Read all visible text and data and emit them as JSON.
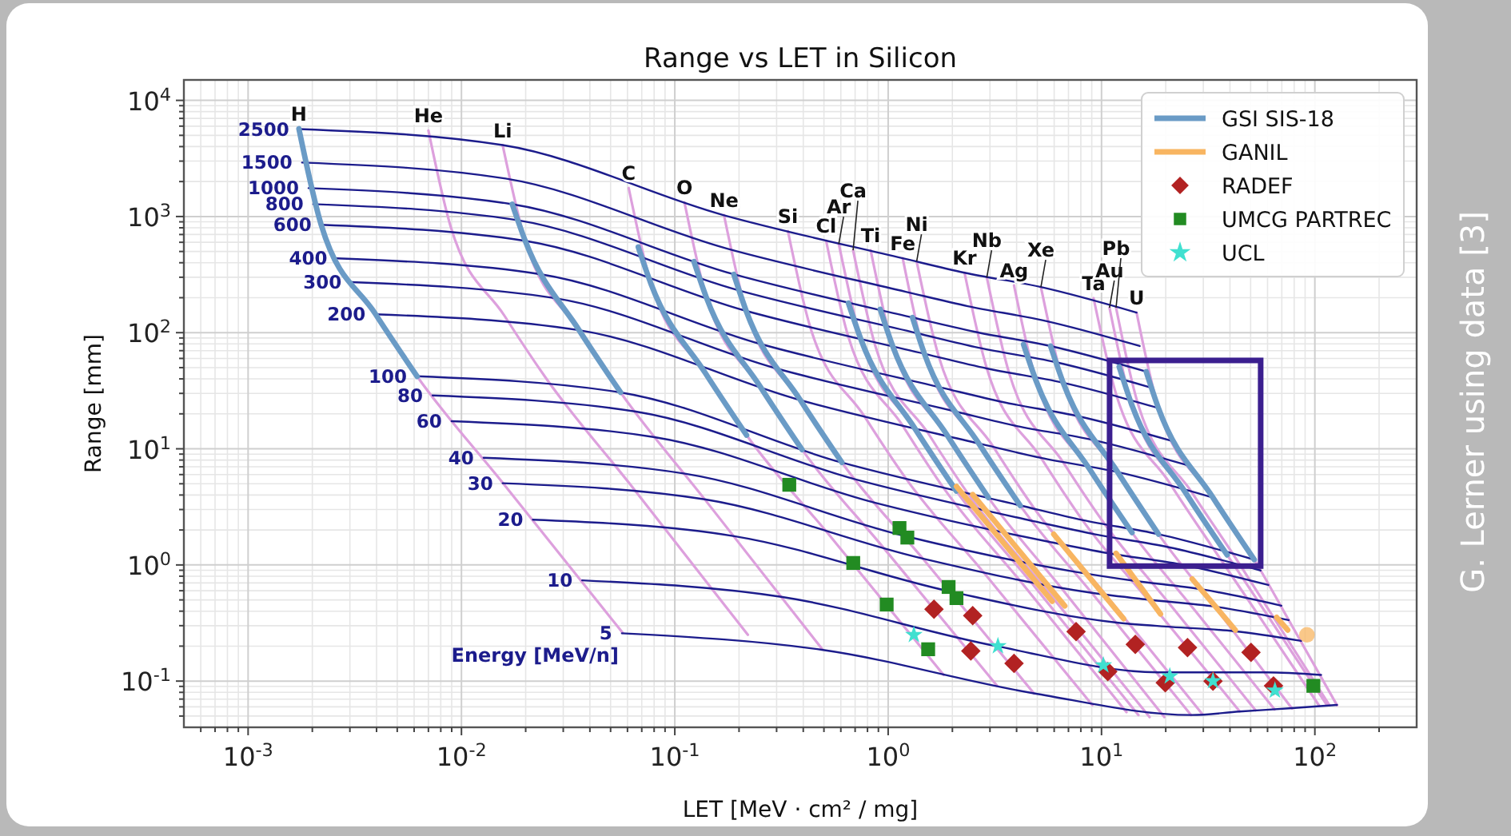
{
  "chart_data": {
    "type": "line",
    "title": "Range vs LET in Silicon",
    "xlabel": "LET [MeV · cm² / mg]",
    "ylabel": "Range [mm]",
    "log": "xy",
    "grid": true,
    "legend": "top right",
    "xlim": [
      0.0005,
      300
    ],
    "ylim": [
      0.04,
      15000
    ],
    "xticks": [
      {
        "value": 0.001,
        "label": "10$^{-3}$"
      },
      {
        "value": 0.01,
        "label": "10$^{-2}$"
      },
      {
        "value": 0.1,
        "label": "10$^{-1}$"
      },
      {
        "value": 1,
        "label": "10$^{0}$"
      },
      {
        "value": 10,
        "label": "10$^{1}$"
      },
      {
        "value": 100,
        "label": "10$^{2}$"
      }
    ],
    "yticks": [
      {
        "value": 0.1,
        "label": "10$^{-1}$"
      },
      {
        "value": 1,
        "label": "10$^{0}$"
      },
      {
        "value": 10,
        "label": "10$^{1}$"
      },
      {
        "value": 100,
        "label": "10$^{2}$"
      },
      {
        "value": 1000,
        "label": "10$^{3}$"
      },
      {
        "value": 10000,
        "label": "10$^{4}$"
      }
    ],
    "annotations": [
      "Energy [MeV/n]",
      "G. Lerner using data [3]"
    ],
    "series": [
      {
        "name": "H",
        "type": "line",
        "color": "#dda0dd",
        "x": [
          0.00173,
          0.0022,
          0.00395,
          0.0062,
          0.0156,
          0.057
        ],
        "values": [
          5700,
          850,
          145,
          42,
          5.1,
          0.26
        ]
      },
      {
        "name": "He",
        "type": "line",
        "color": "#dda0dd",
        "x": [
          0.007,
          0.0089,
          0.0159,
          0.0248,
          0.062,
          0.22
        ],
        "values": [
          5500,
          820,
          140,
          41,
          4.9,
          0.25
        ]
      },
      {
        "name": "Li",
        "type": "line",
        "color": "#dda0dd",
        "x": [
          0.0156,
          0.0199,
          0.0356,
          0.0557,
          0.138,
          0.491
        ],
        "values": [
          4120,
          618,
          105,
          30.6,
          3.68,
          0.188
        ]
      },
      {
        "name": "C",
        "type": "line",
        "color": "#dda0dd",
        "x": [
          0.0608,
          0.0773,
          0.139,
          0.217,
          0.528,
          1.82
        ],
        "values": [
          1760,
          264,
          44.9,
          13.1,
          1.82,
          0.113
        ]
      },
      {
        "name": "O",
        "type": "line",
        "color": "#dda0dd",
        "x": [
          0.111,
          0.141,
          0.253,
          0.395,
          0.953,
          3.24
        ],
        "values": [
          1320,
          198,
          33.7,
          9.82,
          1.4,
          0.091
        ]
      },
      {
        "name": "Ne",
        "type": "line",
        "color": "#dda0dd",
        "x": [
          0.17,
          0.216,
          0.388,
          0.607,
          1.45,
          4.83
        ],
        "values": [
          1030,
          154,
          26.2,
          7.62,
          1.14,
          0.078
        ]
      },
      {
        "name": "Si",
        "type": "line",
        "color": "#dda0dd",
        "x": [
          0.339,
          0.431,
          0.773,
          1.21,
          2.81,
          9.06
        ],
        "values": [
          748,
          112,
          19.1,
          5.56,
          0.857,
          0.062
        ]
      },
      {
        "name": "Cl",
        "type": "line",
        "color": "#dda0dd",
        "x": [
          0.512,
          0.65,
          1.17,
          1.82,
          4.17,
          13.1
        ],
        "values": [
          618,
          92.7,
          15.8,
          4.59,
          0.723,
          0.054
        ]
      },
      {
        "name": "Ar",
        "type": "line",
        "color": "#dda0dd",
        "x": [
          0.587,
          0.746,
          1.34,
          2.09,
          4.75,
          14.9
        ],
        "values": [
          581,
          87.1,
          14.8,
          4.32,
          0.684,
          0.051
        ]
      },
      {
        "name": "Ca",
        "type": "line",
        "color": "#dda0dd",
        "x": [
          0.685,
          0.871,
          1.56,
          2.44,
          5.47,
          16.8
        ],
        "values": [
          512,
          76.7,
          13.1,
          3.8,
          0.622,
          0.049
        ]
      },
      {
        "name": "Ti",
        "type": "line",
        "color": "#dda0dd",
        "x": [
          0.828,
          1.05,
          1.89,
          2.95,
          6.53,
          19.7
        ],
        "values": [
          512,
          76.7,
          13.1,
          3.8,
          0.622,
          0.049
        ]
      },
      {
        "name": "Fe",
        "type": "line",
        "color": "#dda0dd",
        "x": [
          1.17,
          1.48,
          2.66,
          4.16,
          9.0,
          26.3
        ],
        "values": [
          437,
          65.5,
          11.1,
          3.24,
          0.575,
          0.051
        ]
      },
      {
        "name": "Ni",
        "type": "line",
        "color": "#dda0dd",
        "x": [
          1.36,
          1.73,
          3.1,
          4.85,
          10.4,
          29.7
        ],
        "values": [
          410,
          61.5,
          10.5,
          3.05,
          0.56,
          0.052
        ]
      },
      {
        "name": "Kr",
        "type": "line",
        "color": "#dda0dd",
        "x": [
          2.28,
          2.9,
          5.2,
          8.13,
          16.5,
          44.4
        ],
        "values": [
          328,
          49.2,
          8.38,
          2.44,
          0.502,
          0.055
        ]
      },
      {
        "name": "Nb",
        "type": "line",
        "color": "#dda0dd",
        "x": [
          2.9,
          3.69,
          6.62,
          10.4,
          20.5,
          52.7
        ],
        "values": [
          299,
          44.8,
          7.62,
          2.22,
          0.48,
          0.056
        ]
      },
      {
        "name": "Ag",
        "type": "line",
        "color": "#dda0dd",
        "x": [
          3.89,
          4.94,
          8.87,
          13.9,
          26.4,
          64.7
        ],
        "values": [
          255,
          38.3,
          6.52,
          1.9,
          0.442,
          0.057
        ]
      },
      {
        "name": "Xe",
        "type": "line",
        "color": "#dda0dd",
        "x": [
          5.2,
          6.61,
          11.9,
          18.5,
          33.9,
          78.2
        ],
        "values": [
          247,
          37.1,
          6.31,
          1.84,
          0.438,
          0.058
        ]
      },
      {
        "name": "Ta",
        "type": "line",
        "color": "#dda0dd",
        "x": [
          9.18,
          11.7,
          20.9,
          32.7,
          53.3,
          105
        ],
        "values": [
          198,
          29.7,
          5.06,
          1.47,
          0.391,
          0.061
        ]
      },
      {
        "name": "Au",
        "type": "line",
        "color": "#dda0dd",
        "x": [
          10.9,
          13.8,
          24.8,
          38.8,
          61.0,
          114
        ],
        "values": [
          164,
          24.5,
          4.18,
          1.22,
          0.352,
          0.062
        ]
      },
      {
        "name": "Pb",
        "type": "line",
        "color": "#dda0dd",
        "x": [
          11.7,
          14.8,
          26.6,
          41.6,
          64.1,
          117
        ],
        "values": [
          164,
          24.5,
          4.18,
          1.22,
          0.352,
          0.062
        ]
      },
      {
        "name": "U",
        "type": "line",
        "color": "#dda0dd",
        "x": [
          14.6,
          18.5,
          33.3,
          52.0,
          75.5,
          127
        ],
        "values": [
          149,
          22.3,
          3.8,
          1.11,
          0.334,
          0.062
        ]
      },
      {
        "name": "2500",
        "type": "line",
        "color": "#1c1c8c",
        "x": [
          0.00173,
          0.0156,
          0.17,
          1.17,
          2.28,
          5.2,
          14.6
        ],
        "values": [
          5660,
          4120,
          1026,
          437,
          328,
          247,
          149
        ]
      },
      {
        "name": "1500",
        "type": "line",
        "color": "#1c1c8c",
        "x": [
          0.00179,
          0.0161,
          0.176,
          1.21,
          2.36,
          5.38,
          15.1
        ],
        "values": [
          2915,
          2122,
          528,
          225,
          169,
          127,
          76.7
        ]
      },
      {
        "name": "1000",
        "type": "line",
        "color": "#1c1c8c",
        "x": [
          0.00192,
          0.0173,
          0.189,
          1.3,
          2.53,
          5.77,
          16.2
        ],
        "values": [
          1755,
          1277,
          318,
          135,
          102,
          76.6,
          46.2
        ]
      },
      {
        "name": "800",
        "type": "line",
        "color": "#1c1c8c",
        "x": [
          0.00202,
          0.0182,
          0.198,
          1.37,
          2.66,
          6.07,
          17.0
        ],
        "values": [
          1279,
          931,
          232,
          98.8,
          74.1,
          55.8,
          33.7
        ]
      },
      {
        "name": "600",
        "type": "line",
        "color": "#1c1c8c",
        "x": [
          0.0022,
          0.0198,
          0.216,
          1.49,
          2.9,
          6.6,
          18.5
        ],
        "values": [
          849,
          618,
          154,
          65.6,
          49.2,
          37.1,
          22.4
        ]
      },
      {
        "name": "400",
        "type": "line",
        "color": "#1c1c8c",
        "x": [
          0.00261,
          0.0236,
          0.257,
          1.77,
          3.44,
          7.85,
          22.0
        ],
        "values": [
          436,
          318,
          79.1,
          33.7,
          25.3,
          19.0,
          11.5
        ]
      },
      {
        "name": "300",
        "type": "line",
        "color": "#1c1c8c",
        "x": [
          0.00304,
          0.0275,
          0.299,
          2.06,
          4.01,
          9.15,
          25.7
        ],
        "values": [
          272,
          198,
          49.2,
          21.0,
          15.7,
          11.9,
          7.15
        ]
      },
      {
        "name": "200",
        "type": "line",
        "color": "#1c1c8c",
        "x": [
          0.00394,
          0.0356,
          0.388,
          2.67,
          5.2,
          11.9,
          33.3
        ],
        "values": [
          144,
          105,
          26.2,
          11.1,
          8.36,
          6.3,
          3.8
        ]
      },
      {
        "name": "100",
        "type": "line",
        "color": "#1c1c8c",
        "x": [
          0.00616,
          0.0555,
          0.605,
          4.17,
          8.12,
          18.5,
          52.0
        ],
        "values": [
          42.1,
          30.6,
          7.62,
          3.25,
          2.44,
          1.84,
          1.11
        ]
      },
      {
        "name": "80",
        "type": "line",
        "color": "#1c1c8c",
        "x": [
          0.00732,
          0.0658,
          0.711,
          4.81,
          9.26,
          20.7,
          55.7
        ],
        "values": [
          28.8,
          20.9,
          5.42,
          2.38,
          1.84,
          1.42,
          0.896
        ]
      },
      {
        "name": "60",
        "type": "line",
        "color": "#1c1c8c",
        "x": [
          0.00899,
          0.0804,
          0.863,
          5.7,
          10.8,
          23.6,
          60.5
        ],
        "values": [
          17.3,
          12.6,
          3.44,
          1.58,
          1.26,
          1.01,
          0.672
        ]
      },
      {
        "name": "40",
        "type": "line",
        "color": "#1c1c8c",
        "x": [
          0.0127,
          0.113,
          1.19,
          7.59,
          14.1,
          29.6,
          69.7
        ],
        "values": [
          8.38,
          6.09,
          1.78,
          0.871,
          0.732,
          0.616,
          0.446
        ]
      },
      {
        "name": "30",
        "type": "line",
        "color": "#1c1c8c",
        "x": [
          0.0156,
          0.138,
          1.44,
          9.01,
          16.5,
          33.9,
          75.4
        ],
        "values": [
          5.05,
          3.67,
          1.14,
          0.575,
          0.503,
          0.438,
          0.335
        ]
      },
      {
        "name": "20",
        "type": "line",
        "color": "#1c1c8c",
        "x": [
          0.0216,
          0.19,
          1.96,
          11.8,
          21.2,
          41.8,
          86.3
        ],
        "values": [
          2.45,
          1.77,
          0.59,
          0.319,
          0.293,
          0.269,
          0.222
        ]
      },
      {
        "name": "10",
        "type": "line",
        "color": "#1c1c8c",
        "x": [
          0.0368,
          0.32,
          3.22,
          18.5,
          31.9,
          59.0,
          107
        ],
        "values": [
          0.737,
          0.529,
          0.2,
          0.119,
          0.119,
          0.119,
          0.113
        ]
      },
      {
        "name": "5",
        "type": "line",
        "color": "#1c1c8c",
        "x": [
          0.0565,
          0.489,
          4.82,
          26.4,
          44.3,
          78.1,
          127
        ],
        "values": [
          0.258,
          0.186,
          0.0785,
          0.051,
          0.0547,
          0.0585,
          0.0624
        ]
      },
      {
        "name": "GSI SIS-18",
        "type": "line",
        "color": "#6a9bc6",
        "x": [
          0.00173,
          0.0022,
          0.00395,
          0.0062
        ],
        "values": [
          5700,
          850,
          145,
          42
        ]
      },
      {
        "type": "line",
        "color": "#6a9bc6",
        "x": [
          0.0173,
          0.0199,
          0.0356,
          0.0557
        ],
        "values": [
          1277,
          618,
          105,
          30.6
        ]
      },
      {
        "type": "line",
        "color": "#6a9bc6",
        "x": [
          0.0674,
          0.0773,
          0.139,
          0.217
        ],
        "values": [
          546,
          264,
          44.9,
          13.1
        ]
      },
      {
        "type": "line",
        "color": "#6a9bc6",
        "x": [
          0.123,
          0.141,
          0.253,
          0.395
        ],
        "values": [
          409,
          198,
          33.7,
          9.82
        ]
      },
      {
        "type": "line",
        "color": "#6a9bc6",
        "x": [
          0.189,
          0.216,
          0.388,
          0.607
        ],
        "values": [
          318,
          154,
          26.2,
          7.62
        ]
      },
      {
        "type": "line",
        "color": "#6a9bc6",
        "x": [
          0.651,
          0.746,
          1.34,
          2.09
        ],
        "values": [
          180,
          87.1,
          14.8,
          4.32
        ]
      },
      {
        "type": "line",
        "color": "#6a9bc6",
        "x": [
          0.918,
          1.05,
          1.89,
          2.95
        ],
        "values": [
          159,
          76.7,
          13.1,
          3.8
        ]
      },
      {
        "type": "line",
        "color": "#6a9bc6",
        "x": [
          1.3,
          1.48,
          2.66,
          4.16
        ],
        "values": [
          135,
          65.5,
          11.1,
          3.24
        ]
      },
      {
        "type": "line",
        "color": "#6a9bc6",
        "x": [
          4.31,
          4.94,
          8.87,
          13.9
        ],
        "values": [
          79.1,
          38.3,
          6.52,
          1.9
        ]
      },
      {
        "type": "line",
        "color": "#6a9bc6",
        "x": [
          5.77,
          6.61,
          11.9,
          18.5
        ],
        "values": [
          76.6,
          37.1,
          6.31,
          1.84
        ]
      },
      {
        "type": "line",
        "color": "#6a9bc6",
        "x": [
          12.1,
          13.8,
          24.8,
          38.8
        ],
        "values": [
          50.8,
          24.5,
          4.18,
          1.22
        ]
      },
      {
        "type": "line",
        "color": "#6a9bc6",
        "x": [
          16.2,
          18.5,
          33.3,
          52.0
        ],
        "values": [
          46.2,
          22.3,
          3.8,
          1.11
        ]
      },
      {
        "name": "GANIL",
        "type": "line",
        "color": "#f8b561",
        "x": [
          2.09,
          5.87
        ],
        "values": [
          4.74,
          0.486
        ]
      },
      {
        "type": "line",
        "color": "#f8b561",
        "x": [
          2.49,
          6.73
        ],
        "values": [
          4.04,
          0.443
        ]
      },
      {
        "type": "line",
        "color": "#f8b561",
        "x": [
          5.97,
          12.7
        ],
        "values": [
          1.84,
          0.344
        ]
      },
      {
        "type": "line",
        "color": "#f8b561",
        "x": [
          11.7,
          18.9
        ],
        "values": [
          1.26,
          0.378
        ]
      },
      {
        "type": "line",
        "color": "#f8b561",
        "x": [
          26.6,
          42.4
        ],
        "values": [
          0.757,
          0.275
        ]
      },
      {
        "type": "line",
        "color": "#f8b561",
        "x": [
          66.2,
          74.6
        ],
        "values": [
          0.354,
          0.275
        ]
      },
      {
        "type": "scatter",
        "marker": "circle",
        "color": "#f8b561",
        "x": [
          91.8
        ],
        "values": [
          0.25
        ]
      },
      {
        "name": "RADEF",
        "type": "scatter",
        "marker": "diamond",
        "color": "#b22222",
        "x": [
          1.64,
          2.49,
          7.6,
          14.4,
          25.3,
          50.2,
          2.44,
          3.89,
          10.7,
          19.9,
          33.3,
          64.0
        ],
        "values": [
          0.415,
          0.366,
          0.267,
          0.207,
          0.194,
          0.177,
          0.182,
          0.142,
          0.121,
          0.0968,
          0.1,
          0.091
        ]
      },
      {
        "name": "UMCG PARTREC",
        "type": "scatter",
        "marker": "square",
        "color": "#228b22",
        "x": [
          0.344,
          1.13,
          1.23,
          0.686,
          1.92,
          2.09,
          0.984,
          1.54,
          98.4
        ],
        "values": [
          4.9,
          2.08,
          1.72,
          1.04,
          0.646,
          0.518,
          0.456,
          0.188,
          0.091
        ]
      },
      {
        "name": "UCL",
        "type": "scatter",
        "marker": "star",
        "color": "#40e0d0",
        "x": [
          1.32,
          3.27,
          10.2,
          20.9,
          33.3,
          65.0
        ],
        "values": [
          0.25,
          0.2,
          0.137,
          0.11,
          0.1,
          0.083
        ]
      }
    ]
  }
}
